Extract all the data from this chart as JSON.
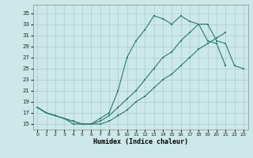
{
  "xlabel": "Humidex (Indice chaleur)",
  "background_color": "#cce8e8",
  "grid_color": "#aacccc",
  "line_color": "#2a7a6a",
  "ylim": [
    14.0,
    36.5
  ],
  "xlim": [
    -0.5,
    23.5
  ],
  "yticks": [
    15,
    17,
    19,
    21,
    23,
    25,
    27,
    29,
    31,
    33,
    35
  ],
  "xticks": [
    0,
    1,
    2,
    3,
    4,
    5,
    6,
    7,
    8,
    9,
    10,
    11,
    12,
    13,
    14,
    15,
    16,
    17,
    18,
    19,
    20,
    21,
    22,
    23
  ],
  "curve1_x": [
    0,
    1,
    2,
    3,
    4,
    5,
    6,
    7,
    8,
    9,
    10,
    11,
    12,
    13,
    14,
    15,
    16,
    17,
    18,
    19,
    20,
    21
  ],
  "curve1_y": [
    18,
    17,
    16.5,
    16,
    15,
    15,
    15,
    16,
    17,
    21,
    27,
    30,
    32,
    34.5,
    34,
    33,
    34.5,
    33.5,
    33,
    30,
    29.5,
    25.5
  ],
  "curve2_x": [
    0,
    1,
    2,
    3,
    4,
    5,
    6,
    7,
    8,
    9,
    10,
    11,
    12,
    13,
    14,
    15,
    16,
    17,
    18,
    19,
    20,
    21,
    22,
    23
  ],
  "curve2_y": [
    18,
    17,
    16.5,
    16,
    15.5,
    15,
    15,
    15.5,
    16.5,
    18,
    19.5,
    21,
    23,
    25,
    27,
    28,
    30,
    31.5,
    33,
    33,
    30,
    29.5,
    25.5,
    25
  ],
  "curve3_x": [
    0,
    1,
    2,
    3,
    4,
    5,
    6,
    7,
    8,
    9,
    10,
    11,
    12,
    13,
    14,
    15,
    16,
    17,
    18,
    19,
    20,
    21,
    22,
    23
  ],
  "curve3_y": [
    18,
    17,
    16.5,
    16,
    15.5,
    15,
    15,
    15,
    15.5,
    16.5,
    17.5,
    19,
    20,
    21.5,
    23,
    24,
    25.5,
    27,
    28.5,
    29.5,
    30.5,
    31.5,
    null,
    25
  ]
}
